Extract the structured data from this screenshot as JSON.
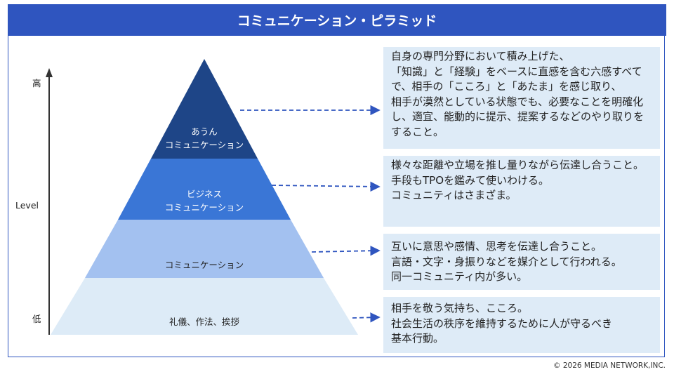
{
  "title": "コミュニケーション・ピラミッド",
  "axis": {
    "high": "高",
    "label": "Level",
    "low": "低"
  },
  "colors": {
    "header": "#2F55BF",
    "layer1": "#1E4587",
    "layer2": "#3A76D6",
    "layer3": "#A3C1F0",
    "layer4": "#DDEBF7",
    "box": "#DEEBF7"
  },
  "layers": [
    {
      "line1": "あうん",
      "line2": "コミュニケーション",
      "description": "自身の専門分野において積み上げた、\n「知識」と「経験」をベースに直感を含む六感すべてで、相手の「こころ」と「あたま」を感じ取り、\n相手が漠然としている状態でも、必要なことを明確化し、適宜、能動的に提示、提案するなどのやり取りをすること。"
    },
    {
      "line1": "ビジネス",
      "line2": "コミュニケーション",
      "description": "様々な距離や立場を推し量りながら伝達し合うこと。\n手段もTPOを鑑みて使いわける。\nコミュニティはさまざま。"
    },
    {
      "line1": "コミュニケーション",
      "description": "互いに意思や感情、思考を伝達し合うこと。\n言語・文字・身振りなどを媒介として行われる。\n同一コミュニティ内が多い。"
    },
    {
      "line1": "礼儀、作法、挨拶",
      "description": "相手を敬う気持ち、こころ。\n社会生活の秩序を維持するために人が守るべき\n基本行動。"
    }
  ],
  "footer": "© 2026 MEDIA NETWORK,INC."
}
